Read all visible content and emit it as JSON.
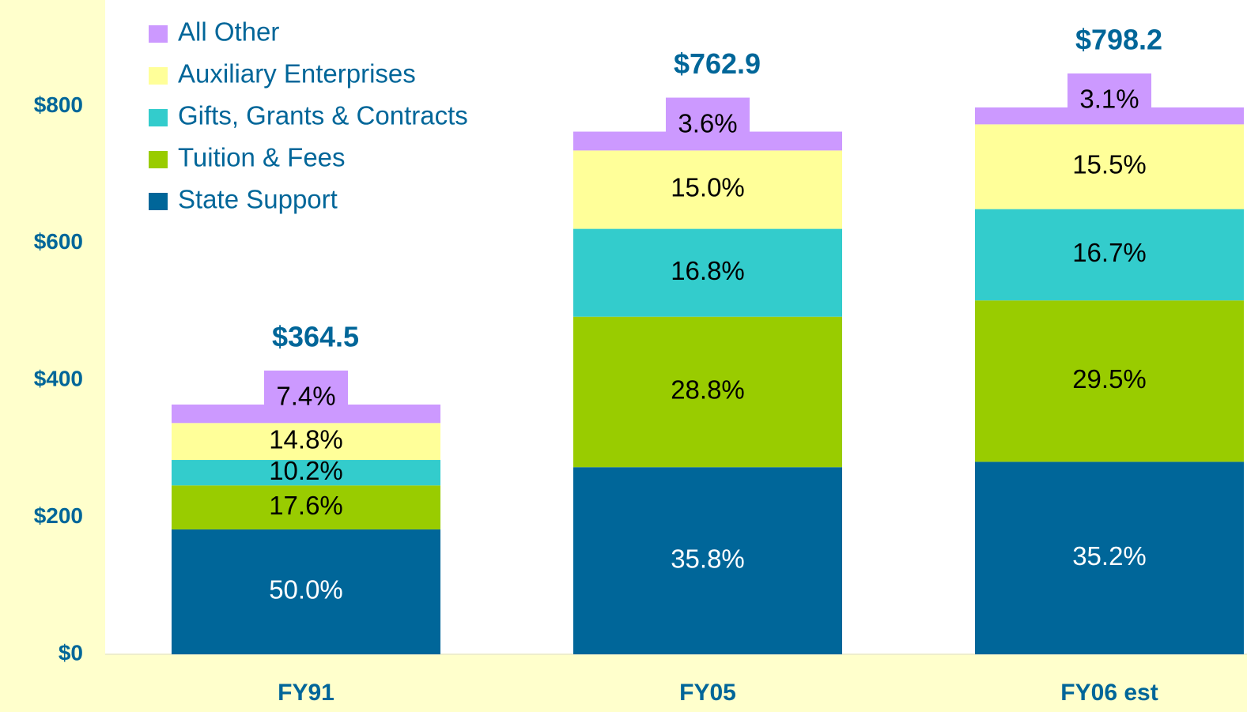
{
  "chart_data": {
    "type": "stacked_bar",
    "categories": [
      "FY91",
      "FY05",
      "FY06 est"
    ],
    "series": [
      {
        "name": "State Support",
        "color": "#006699",
        "values": [
          182.3,
          273.1,
          281.0
        ],
        "value_labels": [
          "50.0%",
          "35.8%",
          "35.2%"
        ]
      },
      {
        "name": "Tuition & Fees",
        "color": "#99cc00",
        "values": [
          64.2,
          219.7,
          235.5
        ],
        "value_labels": [
          "17.6%",
          "28.8%",
          "29.5%"
        ]
      },
      {
        "name": "Gifts, Grants & Contracts",
        "color": "#33cccc",
        "values": [
          37.2,
          128.2,
          133.3
        ],
        "value_labels": [
          "10.2%",
          "16.8%",
          "16.7%"
        ]
      },
      {
        "name": "Auxiliary Enterprises",
        "color": "#ffff99",
        "values": [
          53.9,
          114.4,
          123.7
        ],
        "value_labels": [
          "14.8%",
          "15.0%",
          "15.5%"
        ]
      },
      {
        "name": "All Other",
        "color": "#cc99ff",
        "values": [
          27.0,
          27.5,
          24.7
        ],
        "value_labels": [
          "7.4%",
          "3.6%",
          "3.1%"
        ]
      }
    ],
    "totals": {
      "values": [
        364.5,
        762.9,
        798.2
      ],
      "value_labels": [
        "$364.5",
        "$762.9",
        "$798.2"
      ]
    },
    "ylim": [
      0,
      955
    ],
    "yticks": [
      {
        "value": 0,
        "label": "$0"
      },
      {
        "value": 200,
        "label": "$200"
      },
      {
        "value": 400,
        "label": "$400"
      },
      {
        "value": 600,
        "label": "$600"
      },
      {
        "value": 800,
        "label": "$800"
      }
    ],
    "legend": "top-left"
  }
}
